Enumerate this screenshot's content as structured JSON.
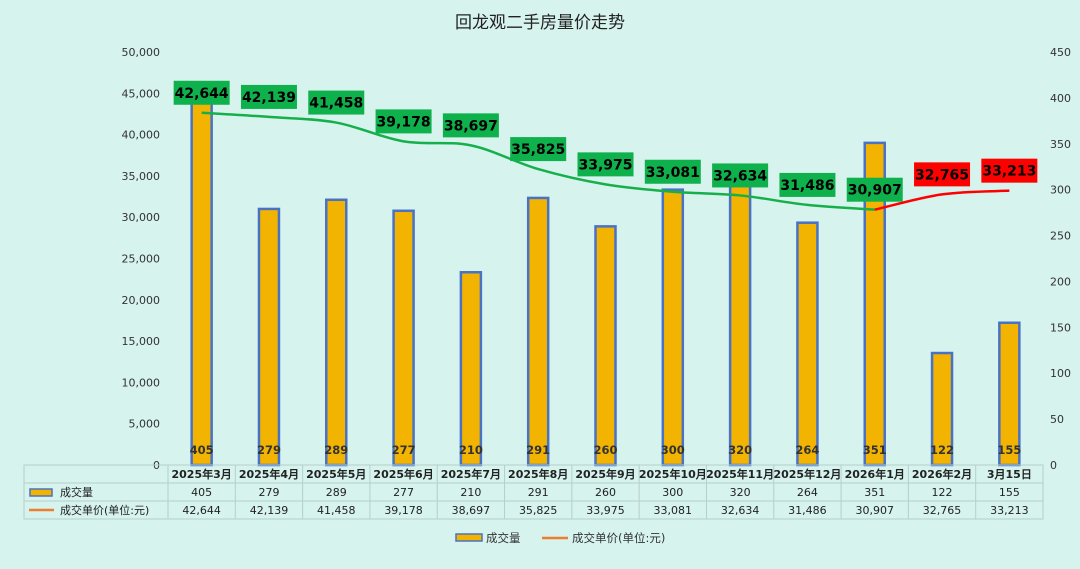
{
  "colors": {
    "background": "#d6f3ee",
    "bar_fill": "#f2b400",
    "bar_stroke": "#4a72c4",
    "line_down": "#16b04a",
    "line_up": "#ff0000",
    "label_green": "#0fb14d",
    "label_red": "#ff0000",
    "legend_line": "#ed7d31"
  },
  "chart_data": {
    "type": "bar-line-combo",
    "title": "回龙观二手房量价走势",
    "categories": [
      "2025年3月",
      "2025年4月",
      "2025年5月",
      "2025年6月",
      "2025年7月",
      "2025年8月",
      "2025年9月",
      "2025年10月",
      "2025年11月",
      "2025年12月",
      "2026年1月",
      "2026年2月",
      "3月15日"
    ],
    "series": [
      {
        "name": "成交量",
        "type": "bar",
        "axis": "right",
        "values": [
          405,
          279,
          289,
          277,
          210,
          291,
          260,
          300,
          320,
          264,
          351,
          122,
          155
        ]
      },
      {
        "name": "成交单价(单位:元)",
        "type": "line",
        "axis": "left",
        "values": [
          42644,
          42139,
          41458,
          39178,
          38697,
          35825,
          33975,
          33081,
          32634,
          31486,
          30907,
          32765,
          33213
        ]
      }
    ],
    "price_labels": [
      "42,644",
      "42,139",
      "41,458",
      "39,178",
      "38,697",
      "35,825",
      "33,975",
      "33,081",
      "32,634",
      "31,486",
      "30,907",
      "32,765",
      "33,213"
    ],
    "price_label_status": [
      "down",
      "down",
      "down",
      "down",
      "down",
      "down",
      "down",
      "down",
      "down",
      "down",
      "down",
      "up",
      "up"
    ],
    "volume_labels": [
      "405",
      "279",
      "289",
      "277",
      "210",
      "291",
      "260",
      "300",
      "320",
      "264",
      "351",
      "122",
      "155"
    ],
    "left_axis": {
      "ylim": [
        0,
        50000
      ],
      "tick_labels": [
        "0",
        "5,000",
        "10,000",
        "15,000",
        "20,000",
        "25,000",
        "30,000",
        "35,000",
        "40,000",
        "45,000",
        "50,000"
      ]
    },
    "right_axis": {
      "ylim": [
        0,
        450
      ],
      "tick_labels": [
        "0",
        "50",
        "100",
        "150",
        "200",
        "250",
        "300",
        "350",
        "400",
        "450"
      ]
    },
    "trend_line": {
      "down_from": 0,
      "down_to": 10,
      "up_from": 10,
      "up_to": 12
    }
  },
  "table": {
    "rows": [
      {
        "label": "成交量",
        "legend": "bar",
        "cells": [
          "405",
          "279",
          "289",
          "277",
          "210",
          "291",
          "260",
          "300",
          "320",
          "264",
          "351",
          "122",
          "155"
        ]
      },
      {
        "label": "成交单价(单位:元)",
        "legend": "line",
        "cells": [
          "42,644",
          "42,139",
          "41,458",
          "39,178",
          "38,697",
          "35,825",
          "33,975",
          "33,081",
          "32,634",
          "31,486",
          "30,907",
          "32,765",
          "33,213"
        ]
      }
    ]
  },
  "legend": [
    {
      "label": "成交量",
      "type": "bar"
    },
    {
      "label": "成交单价(单位:元)",
      "type": "line"
    }
  ]
}
